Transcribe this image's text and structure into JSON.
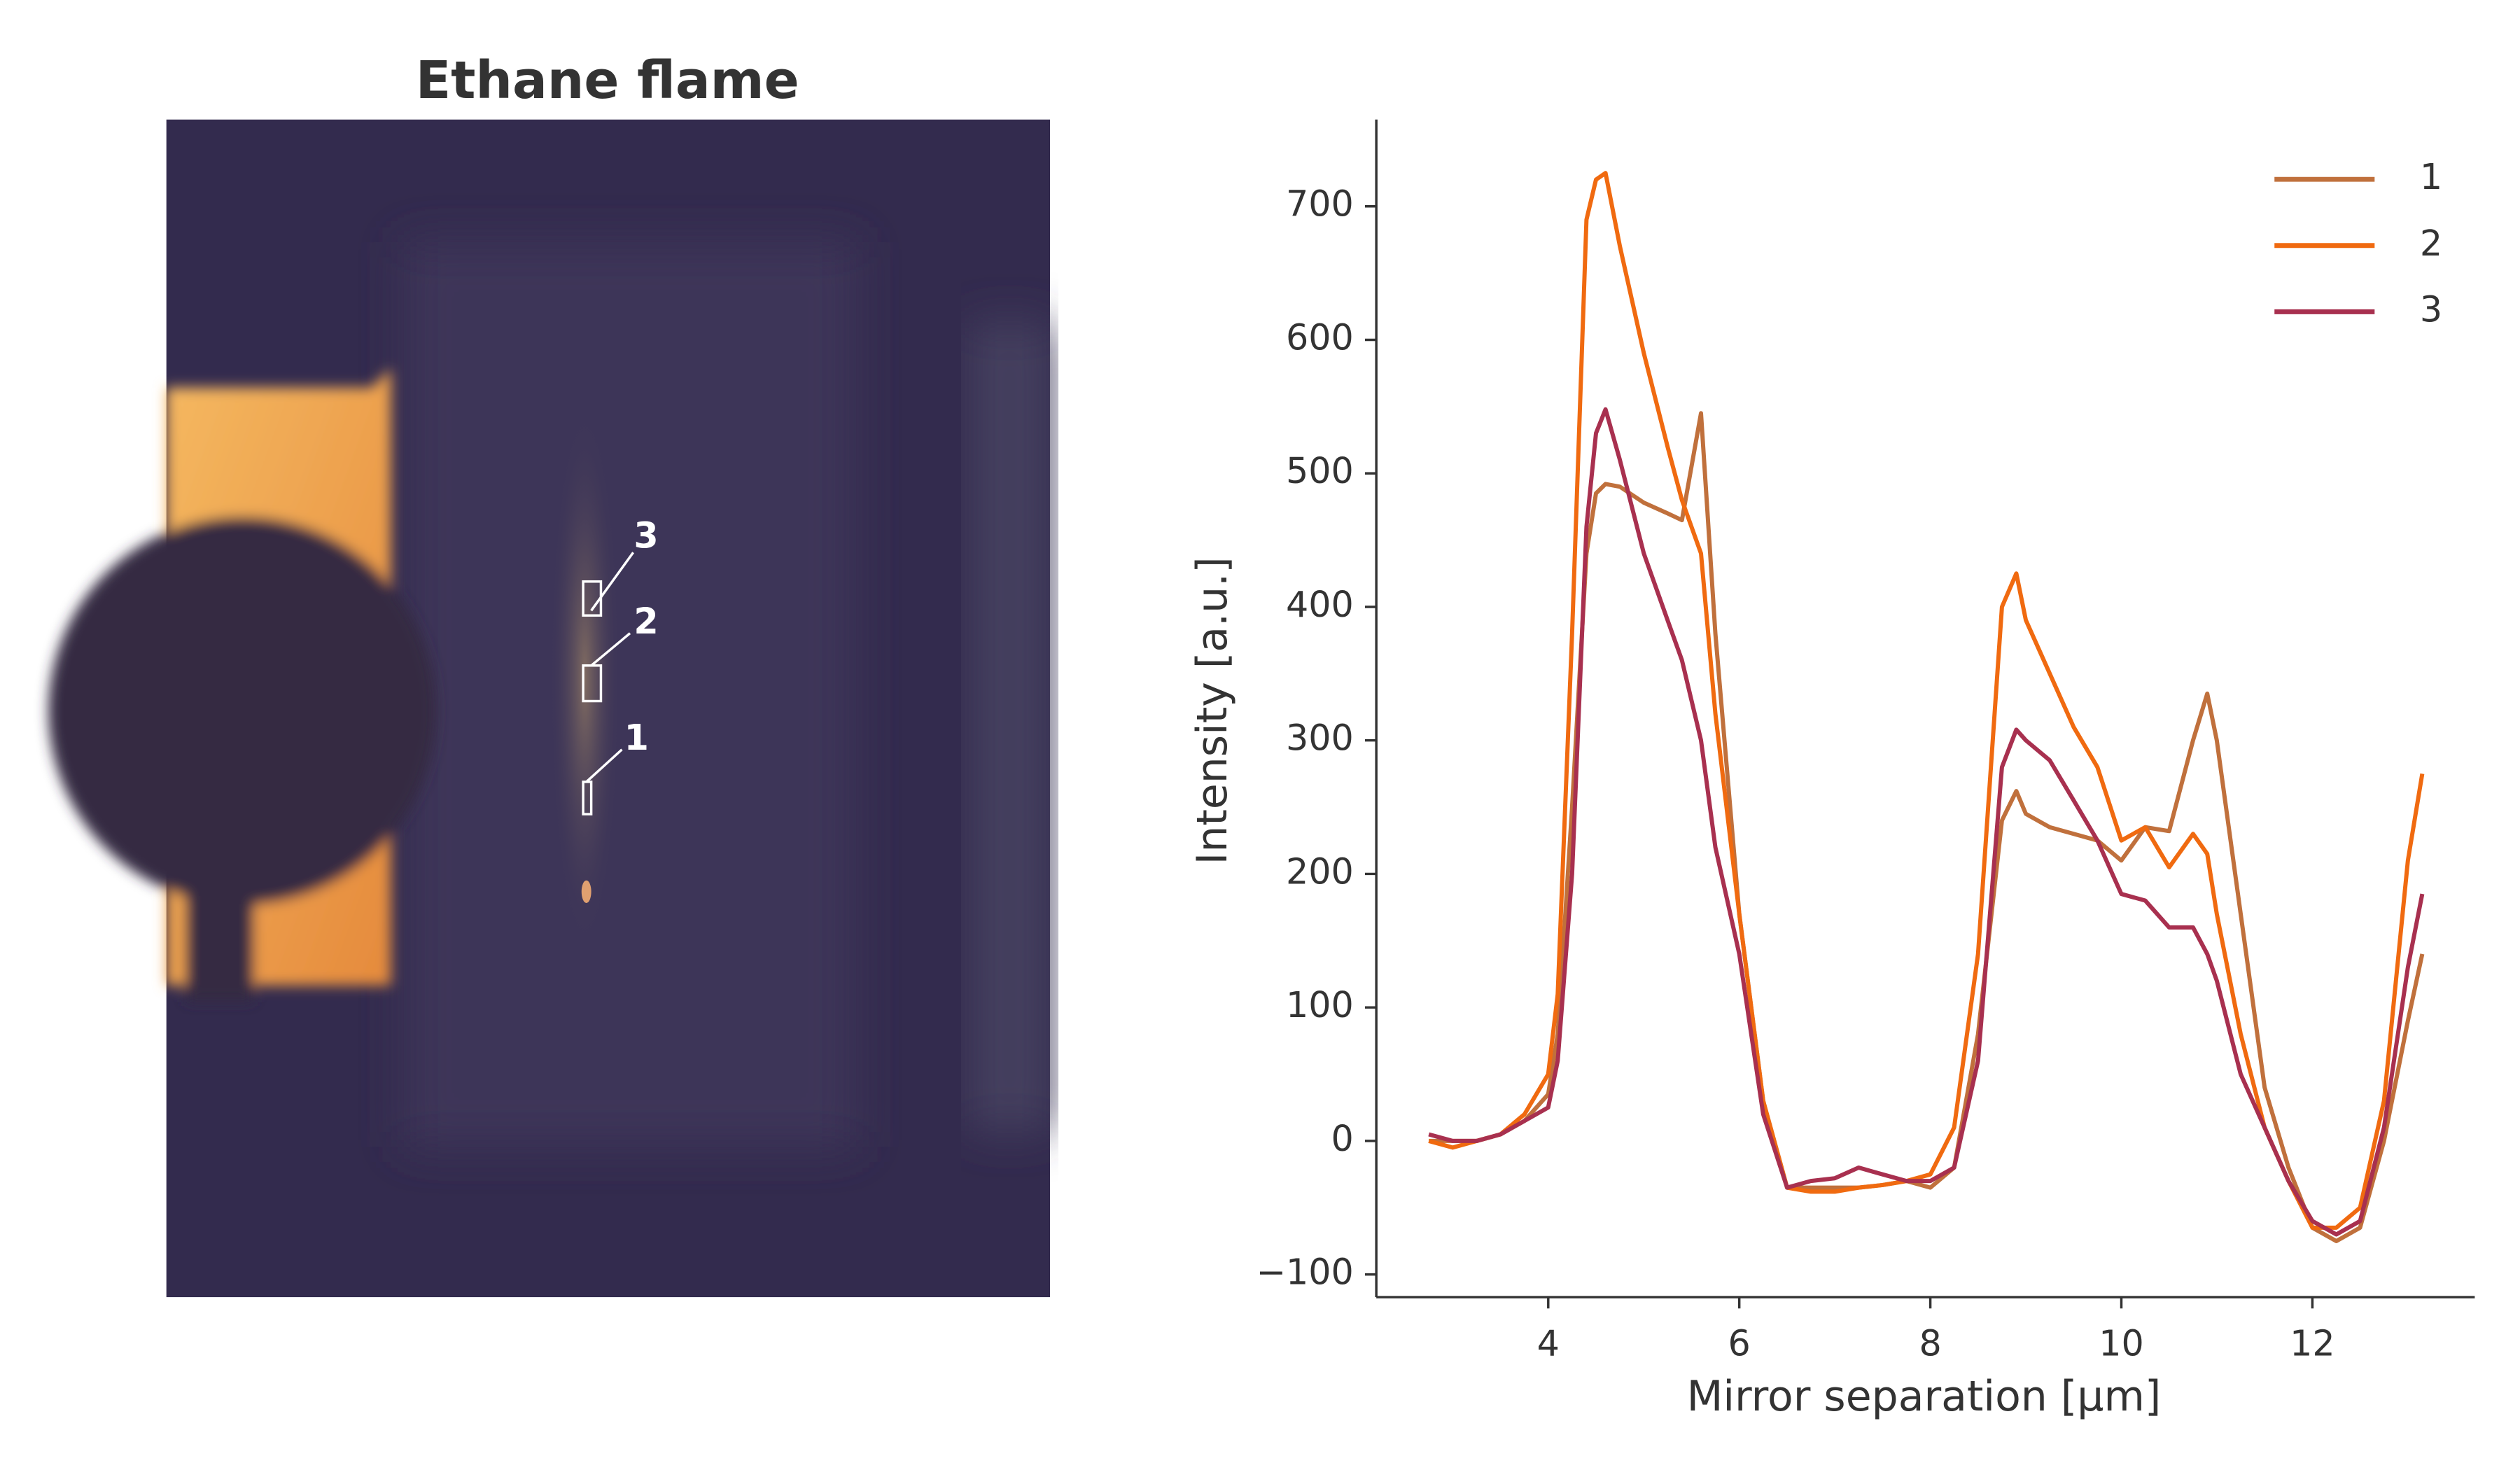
{
  "image_panel": {
    "title": "Ethane flame",
    "regions": [
      "1",
      "2",
      "3"
    ]
  },
  "chart_data": {
    "type": "line",
    "xlabel": "Mirror separation [µm]",
    "ylabel": "Intensity [a.u.]",
    "x": [
      2.75,
      3.0,
      3.25,
      3.5,
      3.75,
      4.0,
      4.1,
      4.25,
      4.4,
      4.5,
      4.6,
      4.75,
      5.0,
      5.25,
      5.4,
      5.6,
      5.75,
      6.0,
      6.25,
      6.5,
      6.75,
      7.0,
      7.25,
      7.5,
      7.75,
      8.0,
      8.25,
      8.5,
      8.75,
      8.9,
      9.0,
      9.25,
      9.5,
      9.75,
      10.0,
      10.25,
      10.5,
      10.75,
      10.9,
      11.0,
      11.25,
      11.5,
      11.75,
      12.0,
      12.25,
      12.5,
      12.75,
      13.0,
      13.15
    ],
    "series": [
      {
        "name": "1",
        "color": "#c0703c",
        "values": [
          0,
          0,
          0,
          5,
          15,
          35,
          80,
          250,
          440,
          485,
          492,
          490,
          478,
          470,
          465,
          545,
          380,
          170,
          30,
          -35,
          -35,
          -35,
          -35,
          -33,
          -30,
          -35,
          -20,
          80,
          240,
          262,
          245,
          235,
          230,
          225,
          210,
          235,
          232,
          300,
          335,
          300,
          170,
          40,
          -20,
          -65,
          -75,
          -65,
          0,
          90,
          140
        ]
      },
      {
        "name": "2",
        "color": "#f06a10",
        "values": [
          0,
          -5,
          0,
          5,
          20,
          50,
          110,
          380,
          690,
          720,
          725,
          670,
          590,
          520,
          480,
          440,
          320,
          170,
          30,
          -35,
          -38,
          -38,
          -35,
          -33,
          -30,
          -25,
          10,
          140,
          400,
          425,
          390,
          350,
          310,
          280,
          225,
          235,
          205,
          230,
          215,
          170,
          80,
          10,
          -30,
          -65,
          -65,
          -50,
          30,
          210,
          275
        ]
      },
      {
        "name": "3",
        "color": "#a8304f",
        "values": [
          5,
          0,
          0,
          5,
          15,
          25,
          60,
          200,
          460,
          530,
          548,
          510,
          440,
          390,
          360,
          300,
          220,
          140,
          20,
          -35,
          -30,
          -28,
          -20,
          -25,
          -30,
          -30,
          -20,
          60,
          280,
          308,
          300,
          285,
          255,
          225,
          185,
          180,
          160,
          160,
          140,
          120,
          50,
          10,
          -30,
          -60,
          -70,
          -60,
          10,
          130,
          185
        ]
      }
    ],
    "xlim": [
      2.2,
      13.7
    ],
    "ylim": [
      -117,
      765
    ],
    "xticks": [
      4,
      6,
      8,
      10,
      12
    ],
    "yticks": [
      {
        "value": -100,
        "label": "−100"
      },
      0,
      100,
      200,
      300,
      400,
      500,
      600,
      700
    ],
    "legend": "upper-right"
  }
}
